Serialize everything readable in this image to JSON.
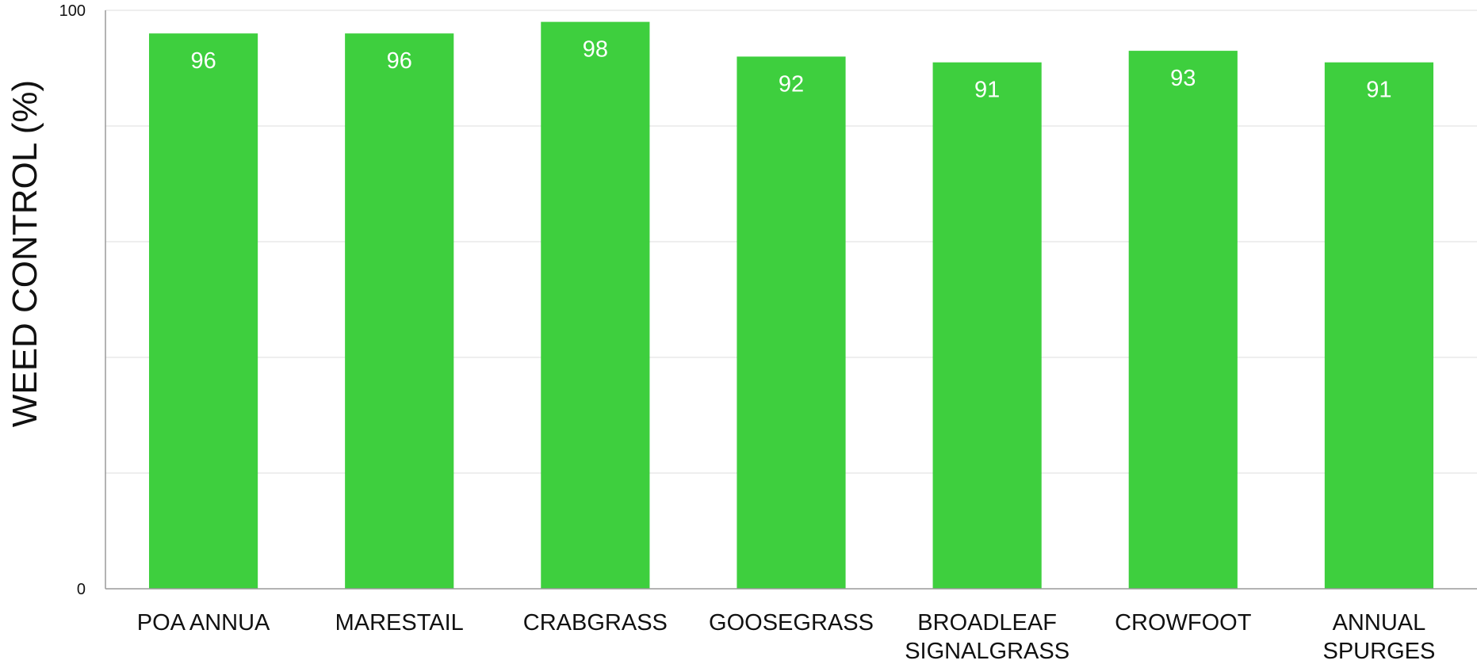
{
  "chart_data": {
    "type": "bar",
    "categories": [
      [
        "POA ANNUA"
      ],
      [
        "MARESTAIL"
      ],
      [
        "CRABGRASS"
      ],
      [
        "GOOSEGRASS"
      ],
      [
        "BROADLEAF",
        "SIGNALGRASS"
      ],
      [
        "CROWFOOT"
      ],
      [
        "ANNUAL",
        "SPURGES"
      ]
    ],
    "values": [
      96,
      96,
      98,
      92,
      91,
      93,
      91
    ],
    "data_labels": [
      "96",
      "96",
      "98",
      "92",
      "91",
      "93",
      "91"
    ],
    "title": "",
    "xlabel": "",
    "ylabel": "WEED CONTROL (%)",
    "ylim": [
      0,
      100
    ],
    "y_tick_labels": [
      "0",
      "100"
    ],
    "gridlines": 5,
    "grid": true,
    "legend": "none",
    "colors": {
      "bar": "#3ecf3e",
      "data_label": "#ffffff",
      "grid": "#e8e8e8",
      "axis": "#9a9a9a",
      "text": "#111111"
    }
  }
}
